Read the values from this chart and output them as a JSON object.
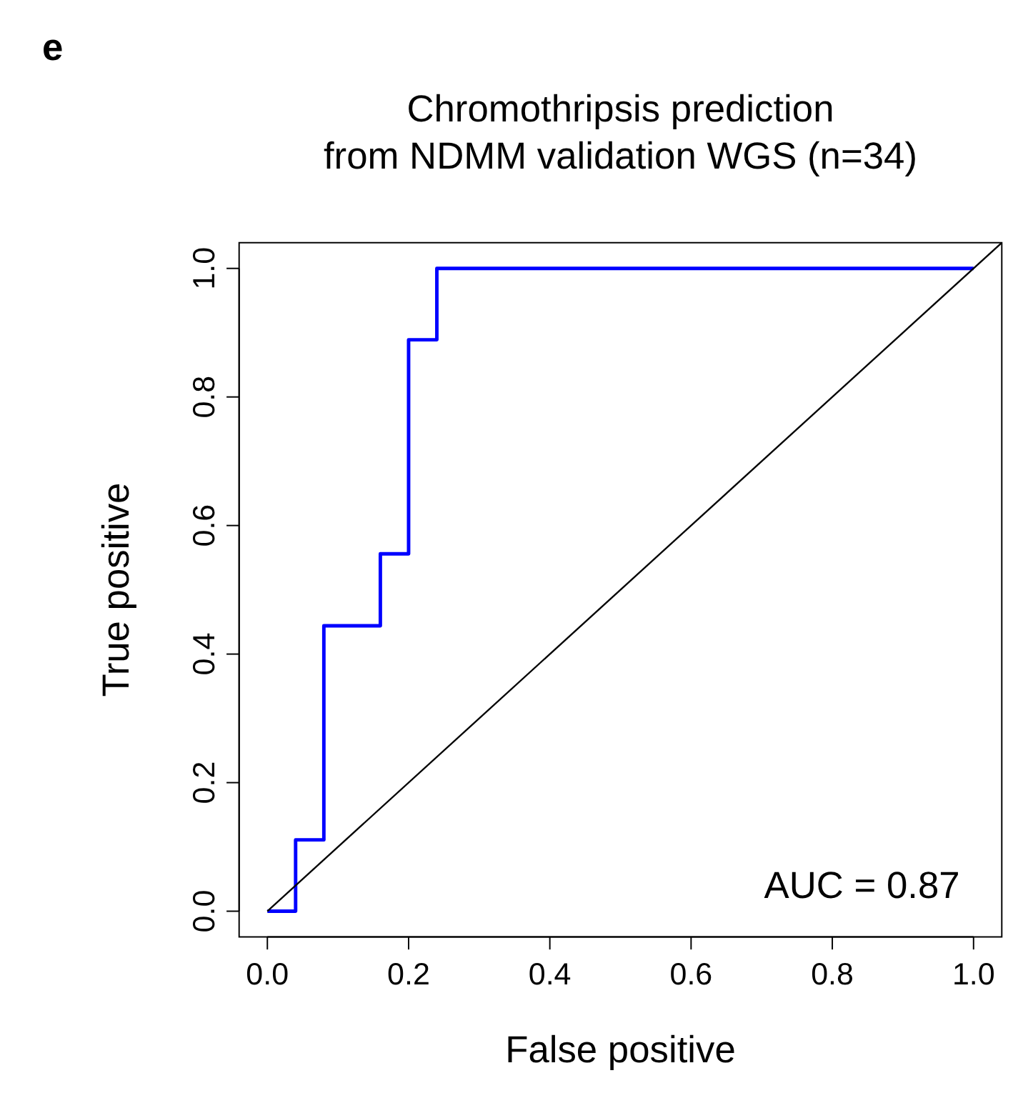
{
  "chart_data": {
    "type": "step",
    "title": "Chromothripsis prediction\nfrom NDMM validation WGS (n=34)",
    "xlabel": "False positive",
    "ylabel": "True positive",
    "annotations": [
      "e",
      "AUC = 0.87"
    ],
    "xlim": [
      -0.04,
      1.04
    ],
    "ylim": [
      -0.04,
      1.04
    ],
    "xticks": [
      {
        "value": 0,
        "label": "0.0"
      },
      {
        "value": 0.2,
        "label": "0.2"
      },
      {
        "value": 0.4,
        "label": "0.4"
      },
      {
        "value": 0.6,
        "label": "0.6"
      },
      {
        "value": 0.8,
        "label": "0.8"
      },
      {
        "value": 1,
        "label": "1.0"
      }
    ],
    "yticks": [
      {
        "value": 0,
        "label": "0.0"
      },
      {
        "value": 0.2,
        "label": "0.2"
      },
      {
        "value": 0.4,
        "label": "0.4"
      },
      {
        "value": 0.6,
        "label": "0.6"
      },
      {
        "value": 0.8,
        "label": "0.8"
      },
      {
        "value": 1,
        "label": "1.0"
      }
    ],
    "grid": false,
    "series": [
      {
        "type": "step",
        "color": "#0000ff",
        "x": [
          0,
          0.04,
          0.08,
          0.16,
          0.2,
          0.24,
          1
        ],
        "values": [
          0,
          0.111,
          0.444,
          0.556,
          0.889,
          1,
          1
        ]
      },
      {
        "type": "line",
        "color": "#000000",
        "x": [
          0,
          1.04
        ],
        "values": [
          0,
          1.04
        ]
      }
    ]
  }
}
